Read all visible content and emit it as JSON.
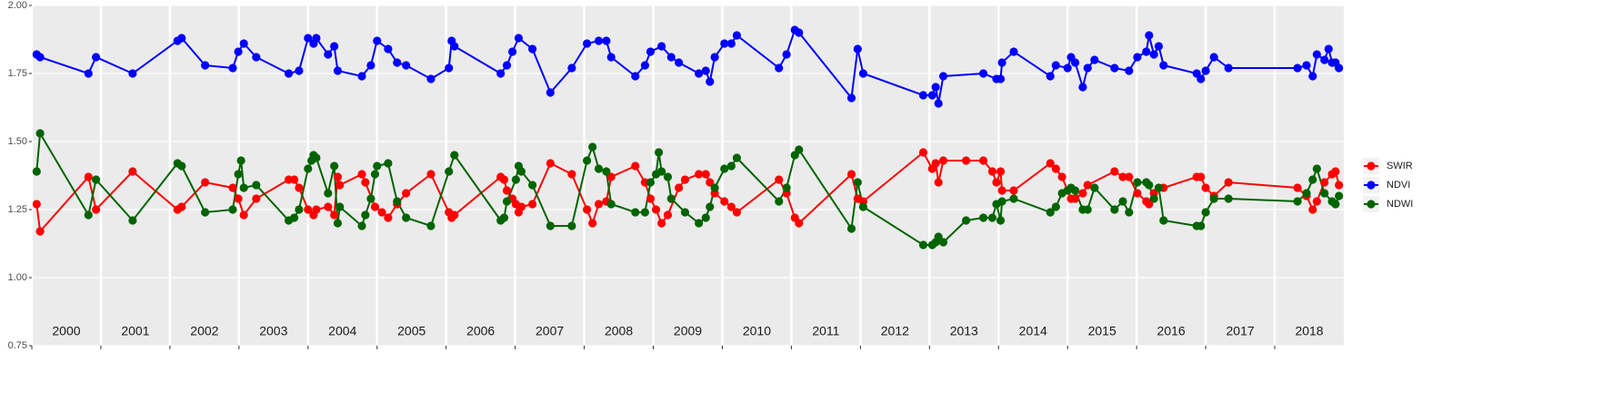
{
  "chart_data": {
    "type": "line",
    "xlim": [
      2000,
      2019
    ],
    "xticks": [
      2000,
      2001,
      2002,
      2003,
      2004,
      2005,
      2006,
      2007,
      2008,
      2009,
      2010,
      2011,
      2012,
      2013,
      2014,
      2015,
      2016,
      2017,
      2018
    ],
    "ylim": [
      0.75,
      2.0
    ],
    "yticks": [
      {
        "value": 0.75,
        "label": "0.75"
      },
      {
        "value": 1.0,
        "label": "1.00"
      },
      {
        "value": 1.25,
        "label": "1.25"
      },
      {
        "value": 1.5,
        "label": "1.50"
      },
      {
        "value": 1.75,
        "label": "1.75"
      },
      {
        "value": 2.0,
        "label": "2.00"
      }
    ],
    "grid": true,
    "legend": "right",
    "series": [
      {
        "name": "SWIR",
        "color": "#ff0000",
        "x": [
          2000.07,
          2000.12,
          2000.82,
          2000.93,
          2001.46,
          2002.11,
          2002.17,
          2002.51,
          2002.91,
          2002.99,
          2003.07,
          2003.25,
          2003.72,
          2003.8,
          2003.87,
          2004.0,
          2004.08,
          2004.12,
          2004.29,
          2004.38,
          2004.43,
          2004.46,
          2004.78,
          2004.83,
          2004.97,
          2005.07,
          2005.16,
          2005.29,
          2005.42,
          2005.78,
          2006.04,
          2006.08,
          2006.12,
          2006.79,
          2006.84,
          2006.88,
          2006.96,
          2007.01,
          2007.05,
          2007.09,
          2007.25,
          2007.51,
          2007.82,
          2008.04,
          2008.12,
          2008.21,
          2008.32,
          2008.39,
          2008.74,
          2008.88,
          2008.96,
          2009.04,
          2009.12,
          2009.21,
          2009.37,
          2009.46,
          2009.66,
          2009.76,
          2009.82,
          2009.89,
          2010.03,
          2010.13,
          2010.21,
          2010.82,
          2010.93,
          2011.05,
          2011.11,
          2011.87,
          2011.96,
          2012.04,
          2012.91,
          2013.04,
          2013.09,
          2013.13,
          2013.2,
          2013.53,
          2013.78,
          2013.91,
          2013.97,
          2014.03,
          2014.05,
          2014.22,
          2014.75,
          2014.83,
          2014.92,
          2015.0,
          2015.05,
          2015.11,
          2015.22,
          2015.29,
          2015.68,
          2015.8,
          2015.89,
          2016.01,
          2016.14,
          2016.18,
          2016.25,
          2016.39,
          2016.87,
          2016.93,
          2017.0,
          2017.12,
          2017.33,
          2018.33,
          2018.46,
          2018.55,
          2018.61,
          2018.72,
          2018.83,
          2018.88,
          2018.93
        ],
        "values": [
          1.27,
          1.17,
          1.37,
          1.25,
          1.39,
          1.25,
          1.26,
          1.35,
          1.33,
          1.29,
          1.23,
          1.29,
          1.36,
          1.36,
          1.33,
          1.25,
          1.23,
          1.25,
          1.26,
          1.23,
          1.37,
          1.34,
          1.38,
          1.35,
          1.26,
          1.24,
          1.22,
          1.27,
          1.31,
          1.38,
          1.24,
          1.22,
          1.23,
          1.37,
          1.36,
          1.32,
          1.29,
          1.27,
          1.24,
          1.26,
          1.27,
          1.42,
          1.38,
          1.25,
          1.2,
          1.27,
          1.28,
          1.37,
          1.41,
          1.35,
          1.29,
          1.25,
          1.2,
          1.23,
          1.33,
          1.36,
          1.38,
          1.38,
          1.35,
          1.31,
          1.28,
          1.26,
          1.24,
          1.36,
          1.31,
          1.22,
          1.2,
          1.38,
          1.29,
          1.28,
          1.46,
          1.4,
          1.42,
          1.35,
          1.43,
          1.43,
          1.43,
          1.39,
          1.35,
          1.39,
          1.32,
          1.32,
          1.42,
          1.4,
          1.37,
          1.32,
          1.29,
          1.29,
          1.31,
          1.34,
          1.39,
          1.37,
          1.37,
          1.31,
          1.28,
          1.27,
          1.31,
          1.33,
          1.37,
          1.37,
          1.33,
          1.3,
          1.35,
          1.33,
          1.3,
          1.25,
          1.28,
          1.35,
          1.38,
          1.39,
          1.34
        ]
      },
      {
        "name": "NDVI",
        "color": "#0000ff",
        "x": [
          2000.07,
          2000.12,
          2000.82,
          2000.93,
          2001.46,
          2002.11,
          2002.17,
          2002.51,
          2002.91,
          2002.99,
          2003.07,
          2003.25,
          2003.72,
          2003.87,
          2004.0,
          2004.08,
          2004.12,
          2004.29,
          2004.38,
          2004.43,
          2004.78,
          2004.91,
          2005.0,
          2005.16,
          2005.29,
          2005.42,
          2005.78,
          2006.04,
          2006.08,
          2006.12,
          2006.79,
          2006.88,
          2006.96,
          2007.05,
          2007.25,
          2007.51,
          2007.82,
          2008.04,
          2008.21,
          2008.32,
          2008.39,
          2008.74,
          2008.88,
          2008.96,
          2009.12,
          2009.26,
          2009.37,
          2009.66,
          2009.76,
          2009.82,
          2009.89,
          2010.03,
          2010.13,
          2010.21,
          2010.82,
          2010.93,
          2011.05,
          2011.11,
          2011.87,
          2011.96,
          2012.04,
          2012.91,
          2013.04,
          2013.09,
          2013.13,
          2013.2,
          2013.78,
          2013.97,
          2014.03,
          2014.05,
          2014.22,
          2014.75,
          2014.83,
          2015.0,
          2015.05,
          2015.11,
          2015.22,
          2015.29,
          2015.39,
          2015.68,
          2015.89,
          2016.01,
          2016.14,
          2016.18,
          2016.25,
          2016.32,
          2016.39,
          2016.87,
          2016.93,
          2017.0,
          2017.12,
          2017.33,
          2018.33,
          2018.46,
          2018.55,
          2018.61,
          2018.72,
          2018.78,
          2018.83,
          2018.88,
          2018.93
        ],
        "values": [
          1.82,
          1.81,
          1.75,
          1.81,
          1.75,
          1.87,
          1.88,
          1.78,
          1.77,
          1.83,
          1.86,
          1.81,
          1.75,
          1.76,
          1.88,
          1.86,
          1.88,
          1.82,
          1.85,
          1.76,
          1.74,
          1.78,
          1.87,
          1.84,
          1.79,
          1.78,
          1.73,
          1.77,
          1.87,
          1.85,
          1.75,
          1.78,
          1.83,
          1.88,
          1.84,
          1.68,
          1.77,
          1.86,
          1.87,
          1.87,
          1.81,
          1.74,
          1.78,
          1.83,
          1.85,
          1.81,
          1.79,
          1.75,
          1.76,
          1.72,
          1.81,
          1.86,
          1.86,
          1.89,
          1.77,
          1.82,
          1.91,
          1.9,
          1.66,
          1.84,
          1.75,
          1.67,
          1.67,
          1.7,
          1.64,
          1.74,
          1.75,
          1.73,
          1.73,
          1.79,
          1.83,
          1.74,
          1.78,
          1.77,
          1.81,
          1.79,
          1.7,
          1.77,
          1.8,
          1.77,
          1.76,
          1.81,
          1.83,
          1.89,
          1.82,
          1.85,
          1.78,
          1.75,
          1.73,
          1.76,
          1.81,
          1.77,
          1.77,
          1.78,
          1.74,
          1.82,
          1.8,
          1.84,
          1.79,
          1.79,
          1.77
        ]
      },
      {
        "name": "NDWI",
        "color": "#006400",
        "x": [
          2000.07,
          2000.12,
          2000.82,
          2000.93,
          2001.46,
          2002.11,
          2002.17,
          2002.51,
          2002.91,
          2002.99,
          2003.03,
          2003.07,
          2003.25,
          2003.72,
          2003.8,
          2003.87,
          2004.0,
          2004.05,
          2004.08,
          2004.12,
          2004.29,
          2004.38,
          2004.43,
          2004.46,
          2004.78,
          2004.83,
          2004.91,
          2004.97,
          2005.0,
          2005.16,
          2005.29,
          2005.42,
          2005.78,
          2006.04,
          2006.12,
          2006.79,
          2006.84,
          2006.88,
          2007.01,
          2007.05,
          2007.09,
          2007.25,
          2007.51,
          2007.82,
          2008.04,
          2008.12,
          2008.21,
          2008.32,
          2008.39,
          2008.74,
          2008.88,
          2008.96,
          2009.04,
          2009.08,
          2009.12,
          2009.21,
          2009.26,
          2009.46,
          2009.66,
          2009.76,
          2009.82,
          2009.89,
          2010.03,
          2010.13,
          2010.21,
          2010.82,
          2010.93,
          2011.05,
          2011.11,
          2011.87,
          2011.96,
          2012.04,
          2012.91,
          2013.04,
          2013.09,
          2013.13,
          2013.2,
          2013.53,
          2013.78,
          2013.91,
          2013.97,
          2014.03,
          2014.05,
          2014.22,
          2014.75,
          2014.83,
          2014.92,
          2015.0,
          2015.05,
          2015.11,
          2015.22,
          2015.29,
          2015.39,
          2015.68,
          2015.8,
          2015.89,
          2016.01,
          2016.14,
          2016.18,
          2016.25,
          2016.32,
          2016.39,
          2016.87,
          2016.93,
          2017.0,
          2017.12,
          2017.33,
          2018.33,
          2018.46,
          2018.55,
          2018.61,
          2018.72,
          2018.83,
          2018.88,
          2018.93
        ],
        "values": [
          1.39,
          1.53,
          1.23,
          1.36,
          1.21,
          1.42,
          1.41,
          1.24,
          1.25,
          1.38,
          1.43,
          1.33,
          1.34,
          1.21,
          1.22,
          1.25,
          1.4,
          1.43,
          1.45,
          1.44,
          1.31,
          1.41,
          1.2,
          1.26,
          1.19,
          1.23,
          1.29,
          1.38,
          1.41,
          1.42,
          1.28,
          1.22,
          1.19,
          1.39,
          1.45,
          1.21,
          1.22,
          1.28,
          1.36,
          1.41,
          1.39,
          1.34,
          1.19,
          1.19,
          1.43,
          1.48,
          1.4,
          1.39,
          1.27,
          1.24,
          1.24,
          1.35,
          1.38,
          1.46,
          1.39,
          1.37,
          1.29,
          1.24,
          1.2,
          1.22,
          1.26,
          1.33,
          1.4,
          1.41,
          1.44,
          1.28,
          1.33,
          1.45,
          1.47,
          1.18,
          1.35,
          1.26,
          1.12,
          1.12,
          1.13,
          1.15,
          1.13,
          1.21,
          1.22,
          1.22,
          1.27,
          1.21,
          1.28,
          1.29,
          1.24,
          1.26,
          1.31,
          1.32,
          1.33,
          1.32,
          1.25,
          1.25,
          1.33,
          1.25,
          1.28,
          1.24,
          1.35,
          1.35,
          1.34,
          1.29,
          1.33,
          1.21,
          1.19,
          1.19,
          1.24,
          1.29,
          1.29,
          1.28,
          1.31,
          1.36,
          1.4,
          1.31,
          1.28,
          1.27,
          1.3
        ]
      }
    ]
  }
}
